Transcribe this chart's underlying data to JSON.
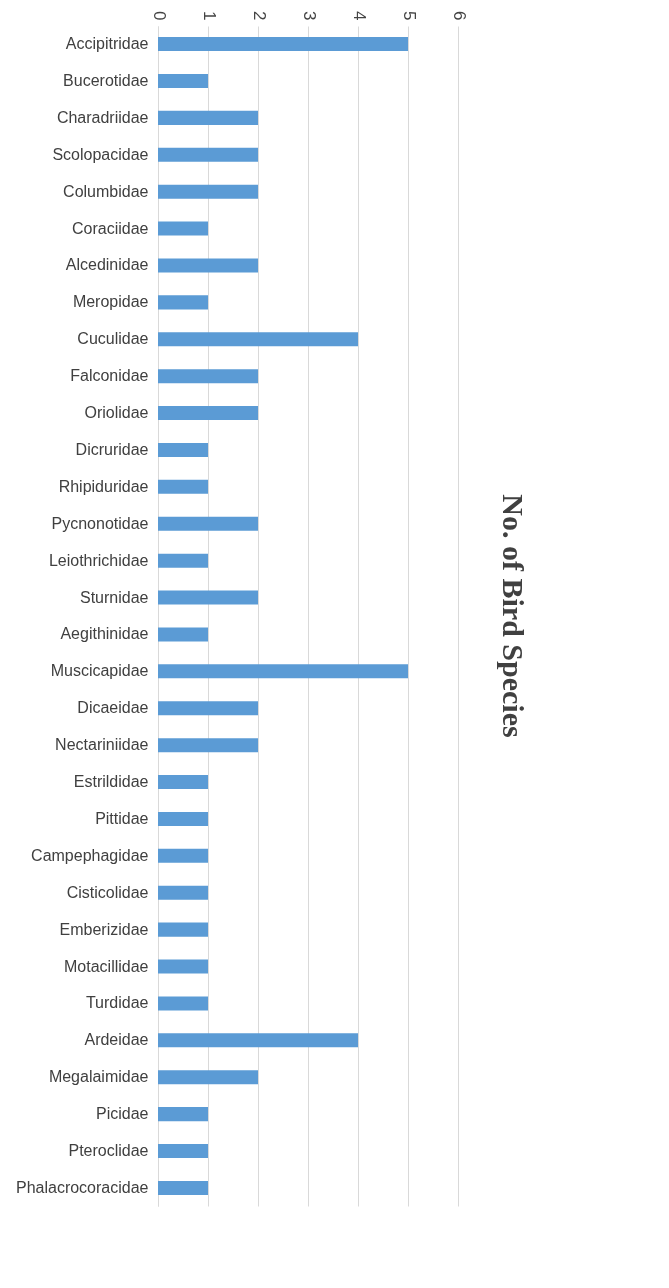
{
  "chart_data": {
    "type": "bar",
    "orientation": "horizontal",
    "title": "No. of Bird Species",
    "categories": [
      "Accipitridae",
      "Bucerotidae",
      "Charadriidae",
      "Scolopacidae",
      "Columbidae",
      "Coraciidae",
      "Alcedinidae",
      "Meropidae",
      "Cuculidae",
      "Falconidae",
      "Oriolidae",
      "Dicruridae",
      "Rhipiduridae",
      "Pycnonotidae",
      "Leiothrichidae",
      "Sturnidae",
      "Aegithinidae",
      "Muscicapidae",
      "Dicaeidae",
      "Nectariniidae",
      "Estrildidae",
      "Pittidae",
      "Campephagidae",
      "Cisticolidae",
      "Emberizidae",
      "Motacillidae",
      "Turdidae",
      "Ardeidae",
      "Megalaimidae",
      "Picidae",
      "Pteroclidae",
      "Phalacrocoracidae"
    ],
    "values": [
      5,
      1,
      2,
      2,
      2,
      1,
      2,
      1,
      4,
      2,
      2,
      1,
      1,
      2,
      1,
      2,
      1,
      5,
      2,
      2,
      1,
      1,
      1,
      1,
      1,
      1,
      1,
      4,
      2,
      1,
      1,
      1
    ],
    "color": "#5b9bd5",
    "xlim": [
      0,
      6
    ],
    "xticks": [
      0,
      1,
      2,
      3,
      4,
      5,
      6
    ],
    "grid": "x"
  }
}
